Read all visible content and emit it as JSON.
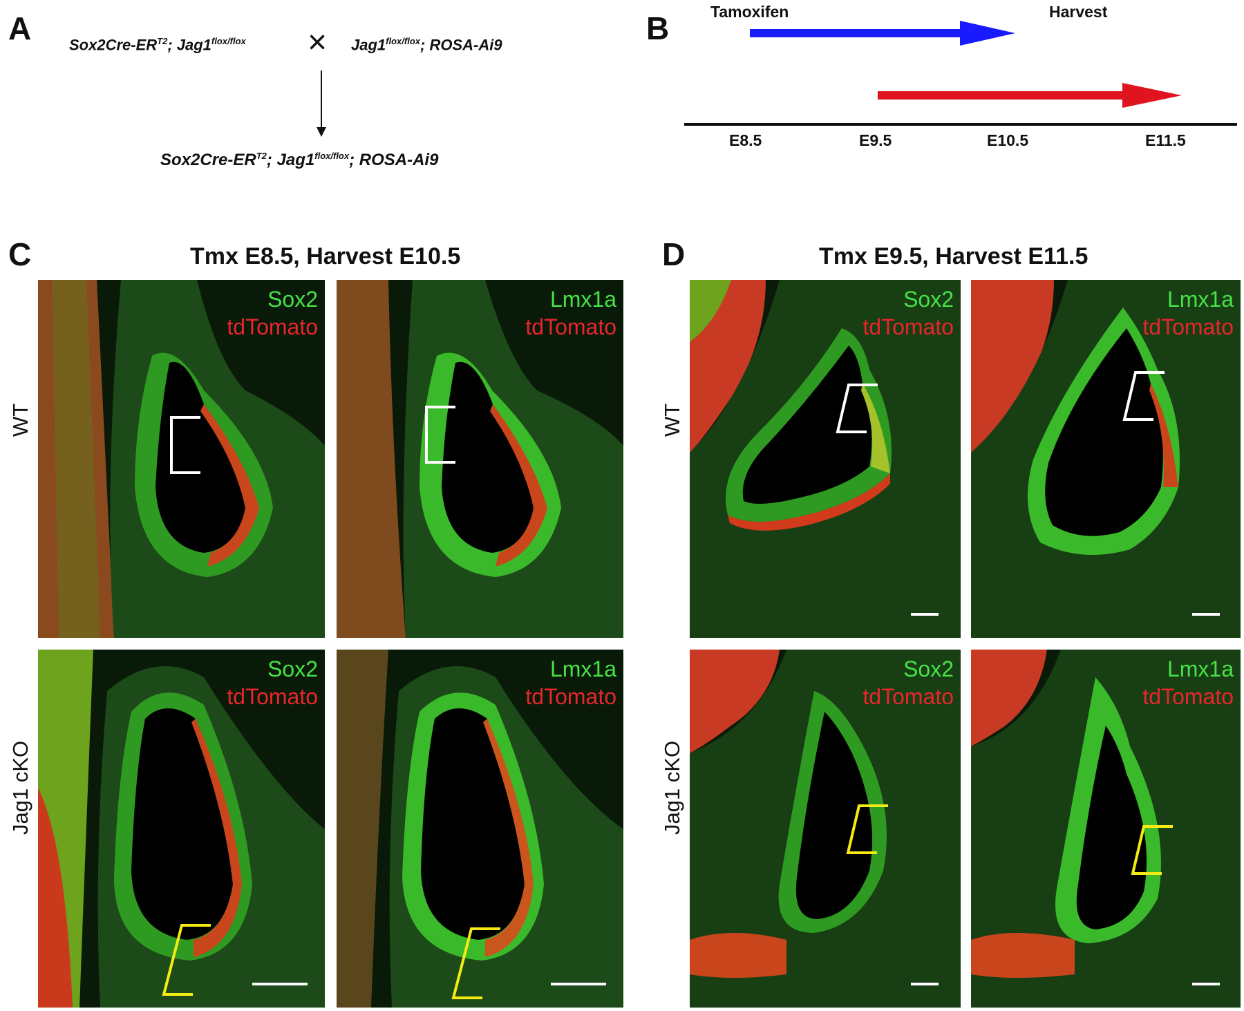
{
  "panels": {
    "a": {
      "letter": "A",
      "parent1": {
        "gene": "Sox2Cre-ER",
        "sup1": "T2",
        "mid": "; Jag1",
        "sup2": "flox/flox"
      },
      "cross_symbol": "×",
      "parent2": {
        "gene": "Jag1",
        "sup1": "flox/flox",
        "tail": "; ROSA-Ai9"
      },
      "offspring": {
        "gene": "Sox2Cre-ER",
        "sup1": "T2",
        "mid": "; Jag1",
        "sup2": "flox/flox",
        "tail": "; ROSA-Ai9"
      }
    },
    "b": {
      "letter": "B",
      "tamoxifen_label": "Tamoxifen",
      "harvest_label": "Harvest",
      "ticks": [
        "E8.5",
        "E9.5",
        "E10.5",
        "E11.5"
      ],
      "arrow_colors": {
        "blue": "#1a1aff",
        "red": "#e0141e"
      }
    },
    "c": {
      "letter": "C",
      "title": "Tmx E8.5, Harvest E10.5",
      "wt_label": "WT",
      "cko_label": "Jag1 cKO",
      "stain1_green": "Sox2",
      "stain1_red": "tdTomato",
      "stain2_green": "Lmx1a",
      "stain2_red": "tdTomato"
    },
    "d": {
      "letter": "D",
      "title": "Tmx E9.5, Harvest E11.5",
      "wt_label": "WT",
      "cko_label": "Jag1 cKO",
      "stain1_green": "Sox2",
      "stain1_red": "tdTomato",
      "stain2_green": "Lmx1a",
      "stain2_red": "tdTomato"
    }
  },
  "colors": {
    "green_stain": "#46e246",
    "red_stain": "#e8262b",
    "wt_bracket": "#ffffff",
    "cko_bracket": "#f5ea14"
  }
}
